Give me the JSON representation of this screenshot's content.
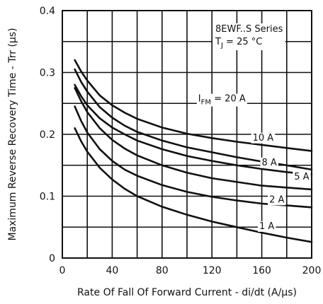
{
  "chart_data": {
    "type": "line",
    "title": "",
    "xlabel": "Rate Of Fall Of Forward Current - di/dt (A/µs)",
    "ylabel": "Maximum Reverse Recovery Time - Trr (µs)",
    "xlim": [
      0,
      200
    ],
    "ylim": [
      0,
      0.4
    ],
    "x_ticks": [
      "0",
      "40",
      "80",
      "120",
      "160",
      "200"
    ],
    "y_ticks": [
      "0",
      "0.1",
      "0.2",
      "0.3",
      "0.4"
    ],
    "grid": true,
    "annotation": {
      "line1": "8EWF..S Series",
      "line2_prefix": "T",
      "line2_sub": "J",
      "line2_suffix": " = 25 °C"
    },
    "series": [
      {
        "name": "20 A",
        "label_prefix": "I",
        "label_sub": "FM",
        "label_suffix": " = 20 A",
        "x": [
          10,
          15,
          20,
          30,
          40,
          50,
          60,
          80,
          100,
          120,
          140,
          160,
          180,
          200
        ],
        "y": [
          0.32,
          0.302,
          0.287,
          0.263,
          0.247,
          0.235,
          0.225,
          0.211,
          0.201,
          0.194,
          0.188,
          0.183,
          0.178,
          0.173
        ],
        "label_at": [
          128,
          0.253
        ]
      },
      {
        "name": "10 A",
        "label_prefix": "",
        "label_sub": "",
        "label_suffix": "10 A",
        "x": [
          10,
          15,
          20,
          30,
          40,
          50,
          60,
          80,
          100,
          120,
          140,
          160,
          180,
          200
        ],
        "y": [
          0.305,
          0.285,
          0.269,
          0.244,
          0.227,
          0.214,
          0.204,
          0.19,
          0.179,
          0.171,
          0.163,
          0.156,
          0.15,
          0.143
        ],
        "label_at": [
          161,
          0.19
        ]
      },
      {
        "name": "8 A",
        "label_prefix": "",
        "label_sub": "",
        "label_suffix": "8 A",
        "x": [
          10,
          15,
          20,
          30,
          40,
          50,
          60,
          80,
          100,
          120,
          140,
          160,
          180,
          200
        ],
        "y": [
          0.28,
          0.262,
          0.247,
          0.226,
          0.211,
          0.2,
          0.19,
          0.176,
          0.165,
          0.157,
          0.15,
          0.144,
          0.139,
          0.135
        ],
        "label_at": [
          166,
          0.15
        ]
      },
      {
        "name": "5 A",
        "label_prefix": "",
        "label_sub": "",
        "label_suffix": "5 A",
        "x": [
          10,
          15,
          20,
          30,
          40,
          50,
          60,
          80,
          100,
          120,
          140,
          160,
          180,
          200
        ],
        "y": [
          0.275,
          0.254,
          0.236,
          0.21,
          0.191,
          0.177,
          0.166,
          0.15,
          0.138,
          0.129,
          0.123,
          0.117,
          0.114,
          0.111
        ],
        "label_at": [
          192,
          0.127
        ]
      },
      {
        "name": "2 A",
        "label_prefix": "",
        "label_sub": "",
        "label_suffix": "2 A",
        "x": [
          10,
          15,
          20,
          30,
          40,
          50,
          60,
          80,
          100,
          120,
          140,
          160,
          180,
          200
        ],
        "y": [
          0.245,
          0.222,
          0.203,
          0.176,
          0.157,
          0.143,
          0.133,
          0.118,
          0.107,
          0.099,
          0.093,
          0.088,
          0.085,
          0.082
        ],
        "label_at": [
          172,
          0.09
        ]
      },
      {
        "name": "1 A",
        "label_prefix": "",
        "label_sub": "",
        "label_suffix": "1 A",
        "x": [
          10,
          15,
          20,
          30,
          40,
          50,
          60,
          80,
          100,
          120,
          140,
          160,
          180,
          200
        ],
        "y": [
          0.21,
          0.189,
          0.172,
          0.146,
          0.127,
          0.112,
          0.1,
          0.083,
          0.07,
          0.059,
          0.05,
          0.041,
          0.033,
          0.026
        ],
        "label_at": [
          164,
          0.047
        ]
      }
    ]
  }
}
